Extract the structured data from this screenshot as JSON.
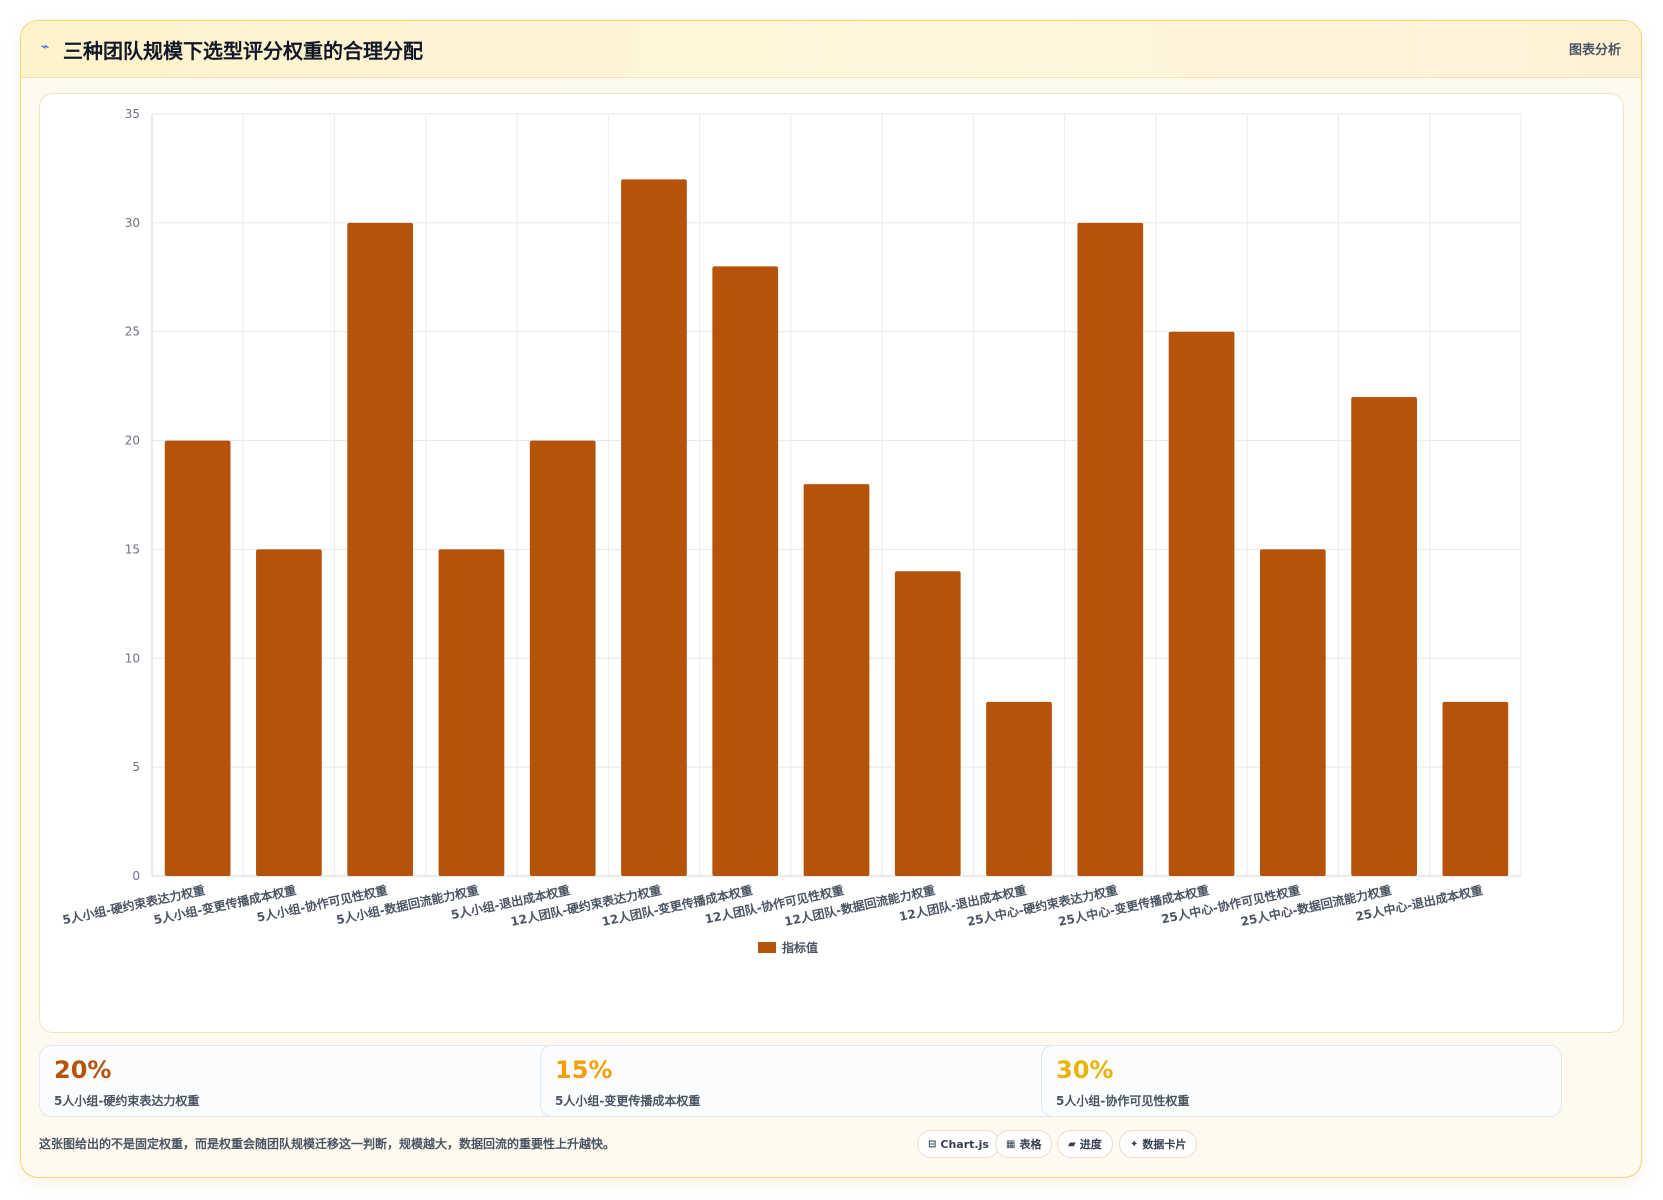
{
  "header": {
    "icon": "lightning-icon",
    "title": "三种团队规模下选型评分权重的合理分配",
    "tag": "图表分析"
  },
  "chart_data": {
    "type": "bar",
    "categories": [
      "5人小组-硬约束表达力权重",
      "5人小组-变更传播成本权重",
      "5人小组-协作可见性权重",
      "5人小组-数据回流能力权重",
      "5人小组-退出成本权重",
      "12人团队-硬约束表达力权重",
      "12人团队-变更传播成本权重",
      "12人团队-协作可见性权重",
      "12人团队-数据回流能力权重",
      "12人团队-退出成本权重",
      "25人中心-硬约束表达力权重",
      "25人中心-变更传播成本权重",
      "25人中心-协作可见性权重",
      "25人中心-数据回流能力权重",
      "25人中心-退出成本权重"
    ],
    "series": [
      {
        "name": "指标值",
        "values": [
          20,
          15,
          30,
          15,
          20,
          32,
          28,
          18,
          14,
          8,
          30,
          25,
          15,
          22,
          8
        ],
        "color": "#b45309"
      }
    ],
    "ylim": [
      0,
      35
    ],
    "yticks": [
      0,
      5,
      10,
      15,
      20,
      25,
      30,
      35
    ],
    "grid": true,
    "legend_position": "bottom"
  },
  "stats": [
    {
      "value": "20%",
      "label": "5人小组-硬约束表达力权重",
      "color": "#b45309"
    },
    {
      "value": "15%",
      "label": "5人小组-变更传播成本权重",
      "color": "#f59e0b"
    },
    {
      "value": "30%",
      "label": "5人小组-协作可见性权重",
      "color": "#eab308"
    }
  ],
  "footnote": "这张图给出的不是固定权重，而是权重会随团队规模迁移这一判断，规模越大，数据回流的重要性上升越快。",
  "chips": [
    {
      "icon": "chart-icon",
      "glyph": "⊟",
      "label": "Chart.js"
    },
    {
      "icon": "table-icon",
      "glyph": "▦",
      "label": "表格"
    },
    {
      "icon": "progress-icon",
      "glyph": "▰",
      "label": "进度"
    },
    {
      "icon": "sparkle-icon",
      "glyph": "✦",
      "label": "数据卡片"
    }
  ]
}
